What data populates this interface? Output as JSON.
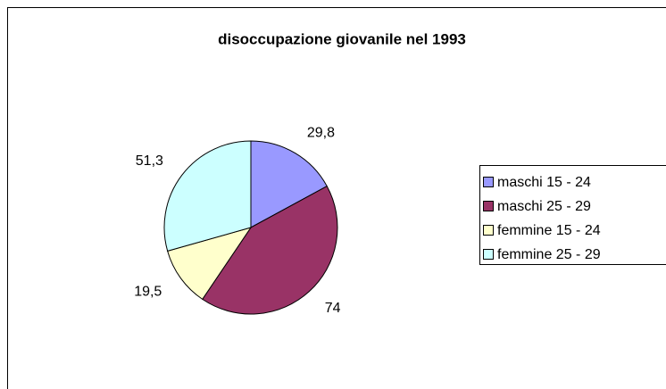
{
  "chart_data": {
    "type": "pie",
    "title": "disoccupazione giovanile nel 1993",
    "categories": [
      "maschi 15 - 24",
      "maschi 25 - 29",
      "femmine 15 - 24",
      "femmine 25 - 29"
    ],
    "values": [
      29.8,
      74,
      19.5,
      51.3
    ],
    "value_labels": [
      "29,8",
      "74",
      "19,5",
      "51,3"
    ],
    "colors": [
      "#9999ff",
      "#993366",
      "#ffffcc",
      "#ccffff"
    ],
    "legend": "right"
  }
}
